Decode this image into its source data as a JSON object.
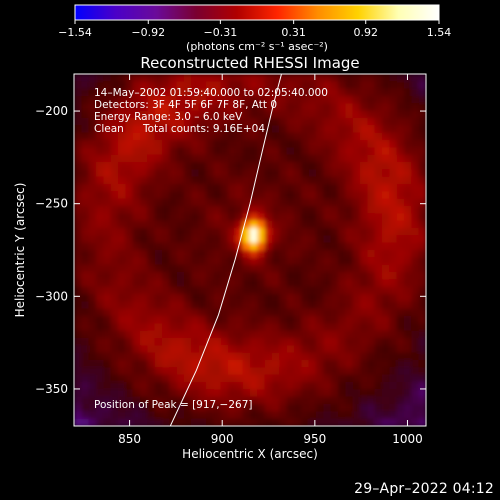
{
  "chart_data": {
    "type": "heatmap",
    "title": "Reconstructed RHESSI Image",
    "xlabel": "Heliocentric X (arcsec)",
    "ylabel": "Heliocentric Y (arcsec)",
    "xlim": [
      820,
      1010
    ],
    "ylim": [
      -370,
      -180
    ],
    "x_ticks": [
      850,
      900,
      950,
      1000
    ],
    "y_ticks": [
      -200,
      -250,
      -300,
      -350
    ],
    "x_tick_labels": [
      "850",
      "900",
      "950",
      "1000"
    ],
    "y_tick_labels": [
      "−200",
      "−250",
      "−300",
      "−350"
    ],
    "colorbar": {
      "range": [
        -1.54,
        1.54
      ],
      "ticks": [
        -1.54,
        -0.92,
        -0.31,
        0.31,
        0.92,
        1.54
      ],
      "tick_labels": [
        "−1.54",
        "−0.92",
        "−0.31",
        "0.31",
        "0.92",
        "1.54"
      ],
      "unit_label": "(photons cm⁻² s⁻¹ asec⁻²)",
      "colormap": [
        "#0000ff",
        "#4a00c8",
        "#6a0a9a",
        "#7a0030",
        "#b00000",
        "#ff2400",
        "#ff8c00",
        "#ffd200",
        "#ffffb4",
        "#ffffff"
      ]
    },
    "annotations": [
      "14–May–2002 01:59:40.000 to 02:05:40.000",
      "Detectors: 3F 4F 5F 6F 7F 8F, Att 0",
      "Energy Range: 3.0 – 6.0 keV",
      "Clean",
      "Total counts: 9.16E+04"
    ],
    "peak_label": "Position of Peak = [917,−267]",
    "peak": [
      917,
      -267
    ],
    "peak_value": 1.54,
    "ring_center": [
      915,
      -262
    ],
    "ring_radius": 78,
    "limb_points": [
      [
        872,
        -370
      ],
      [
        886,
        -340
      ],
      [
        898,
        -310
      ],
      [
        907,
        -280
      ],
      [
        915,
        -250
      ],
      [
        922,
        -220
      ],
      [
        928,
        -195
      ],
      [
        932,
        -180
      ]
    ]
  },
  "footer_date": "29–Apr–2022 04:12"
}
